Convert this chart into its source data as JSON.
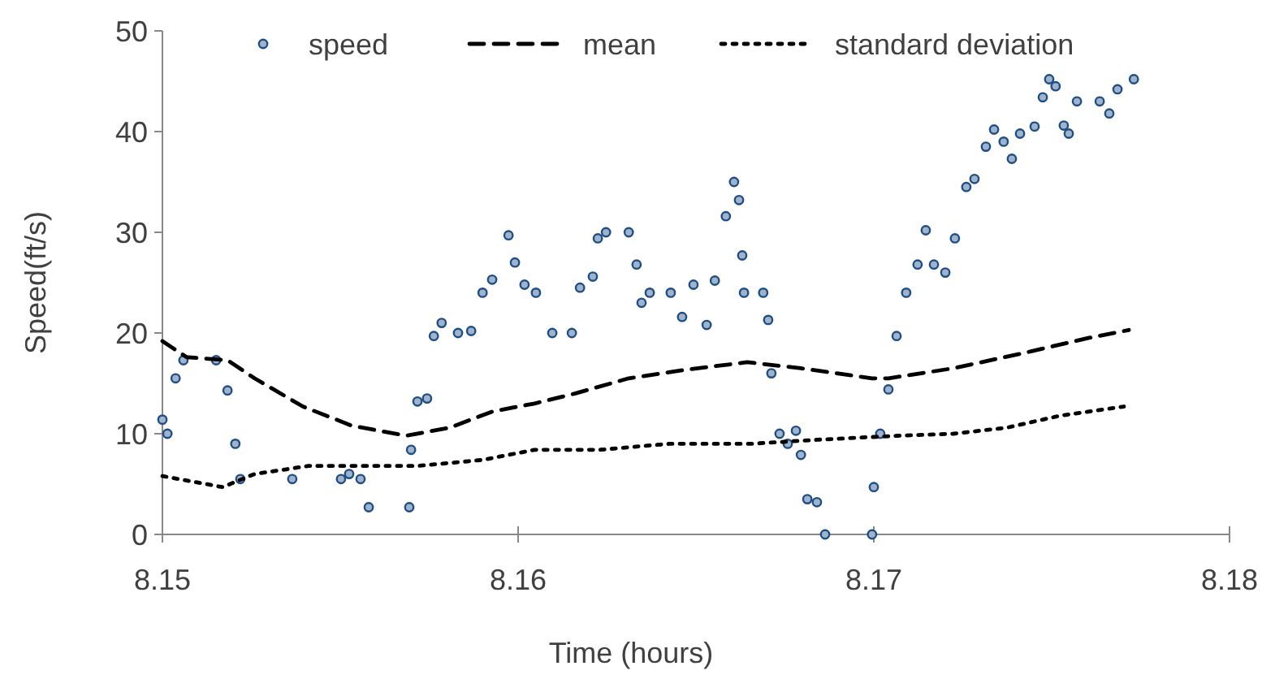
{
  "chart_data": {
    "type": "line",
    "xlabel": "Time (hours)",
    "ylabel": "Speed(ft/s)",
    "xlim": [
      8.15,
      8.18
    ],
    "xticks": [
      8.15,
      8.16,
      8.17,
      8.18
    ],
    "ylim": [
      0,
      50
    ],
    "yticks": [
      0,
      10,
      20,
      30,
      40,
      50
    ],
    "grid": false,
    "legend": "top",
    "series": [
      {
        "name": "speed",
        "type": "scatter",
        "marker": "circle",
        "color": "#1f4e85",
        "x": [
          8.15,
          8.15014,
          8.15037,
          8.15059,
          8.15151,
          8.15183,
          8.15205,
          8.15219,
          8.15365,
          8.15502,
          8.15525,
          8.15557,
          8.1558,
          8.15694,
          8.15699,
          8.15717,
          8.15744,
          8.15763,
          8.15785,
          8.15831,
          8.15868,
          8.159,
          8.15927,
          8.15973,
          8.15991,
          8.16018,
          8.1605,
          8.16096,
          8.16151,
          8.16174,
          8.1621,
          8.16224,
          8.16247,
          8.16311,
          8.16333,
          8.16347,
          8.1637,
          8.16429,
          8.16461,
          8.16493,
          8.1653,
          8.16553,
          8.16584,
          8.16607,
          8.16621,
          8.1663,
          8.16635,
          8.16689,
          8.16703,
          8.16712,
          8.16735,
          8.16758,
          8.16781,
          8.16795,
          8.16813,
          8.1684,
          8.16863,
          8.16995,
          8.17,
          8.17018,
          8.17041,
          8.17064,
          8.17091,
          8.17123,
          8.17146,
          8.17169,
          8.17201,
          8.17228,
          8.1726,
          8.17283,
          8.17315,
          8.17338,
          8.17365,
          8.17388,
          8.17411,
          8.17452,
          8.17475,
          8.17493,
          8.17511,
          8.17534,
          8.17548,
          8.17571,
          8.17635,
          8.17662,
          8.17685,
          8.17731
        ],
        "values": [
          11.4,
          10,
          15.5,
          17.3,
          17.3,
          14.3,
          9,
          5.5,
          5.5,
          5.5,
          6,
          5.5,
          2.7,
          2.7,
          8.4,
          13.2,
          13.5,
          19.7,
          21,
          20,
          20.2,
          24,
          25.3,
          29.7,
          27,
          24.8,
          24,
          20,
          20,
          24.5,
          25.6,
          29.4,
          30,
          30,
          26.8,
          23,
          24,
          24,
          21.6,
          24.8,
          20.8,
          25.2,
          31.6,
          35,
          33.2,
          27.7,
          24,
          24,
          21.3,
          16,
          10,
          9,
          10.3,
          7.9,
          3.5,
          3.2,
          0,
          0,
          4.7,
          10,
          14.4,
          19.7,
          24,
          26.8,
          30.2,
          26.8,
          26,
          29.4,
          34.5,
          35.3,
          38.5,
          40.2,
          39,
          37.3,
          39.8,
          40.5,
          43.4,
          45.2,
          44.5,
          40.6,
          39.8,
          43,
          43,
          41.8,
          44.2,
          45.2
        ]
      },
      {
        "name": "mean",
        "type": "line",
        "line_style": "dashed",
        "marker": "none",
        "color": "#000000",
        "x": [
          8.15,
          8.15068,
          8.15183,
          8.15259,
          8.15395,
          8.15532,
          8.15685,
          8.15808,
          8.15927,
          8.16046,
          8.16161,
          8.16311,
          8.16461,
          8.16644,
          8.16795,
          8.16995,
          8.17041,
          8.17224,
          8.1742,
          8.17603,
          8.17717
        ],
        "values": [
          19.2,
          17.6,
          17.3,
          15.5,
          12.7,
          10.8,
          9.8,
          10.6,
          12.2,
          13,
          14,
          15.5,
          16.3,
          17.1,
          16.5,
          15.5,
          15.5,
          16.5,
          18,
          19.5,
          20.3
        ]
      },
      {
        "name": "standard deviation",
        "type": "line",
        "line_style": "dotted",
        "marker": "none",
        "color": "#000000",
        "x": [
          8.15,
          8.15169,
          8.15259,
          8.15411,
          8.15717,
          8.159,
          8.16046,
          8.16228,
          8.16425,
          8.16653,
          8.1684,
          8.17068,
          8.17224,
          8.17374,
          8.17525,
          8.17703
        ],
        "values": [
          5.8,
          4.7,
          6,
          6.8,
          6.8,
          7.4,
          8.4,
          8.4,
          9,
          9,
          9.4,
          9.8,
          10,
          10.6,
          11.8,
          12.7
        ]
      }
    ]
  }
}
